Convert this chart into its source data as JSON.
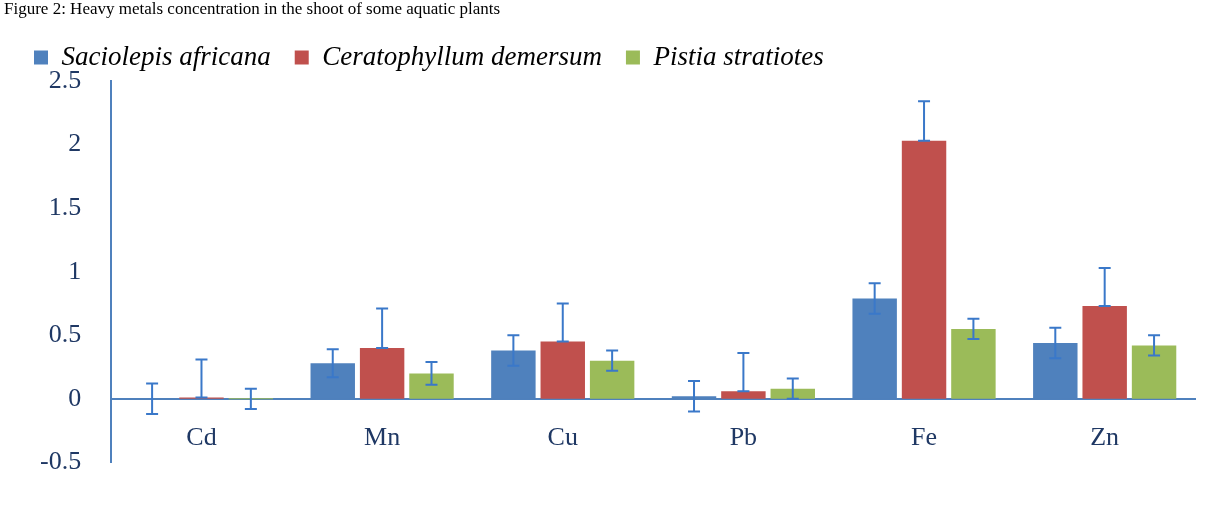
{
  "chart_data": {
    "type": "bar",
    "title": "Figure 2: Heavy metals concentration in the shoot of some aquatic plants",
    "categories": [
      "Cd",
      "Mn",
      "Cu",
      "Pb",
      "Fe",
      "Zn"
    ],
    "series": [
      {
        "name": "Saciolepis africana",
        "color": "#4f81bd",
        "values": [
          0,
          0.28,
          0.38,
          0.02,
          0.79,
          0.44
        ],
        "errors": [
          0.12,
          0.11,
          0.12,
          0.12,
          0.12,
          0.12
        ]
      },
      {
        "name": "Ceratophyllum demersum",
        "color": "#c0504d",
        "values": [
          0.01,
          0.4,
          0.45,
          0.06,
          2.03,
          0.73
        ],
        "errors": [
          [
            0.01,
            0.31
          ],
          [
            0.4,
            0.71
          ],
          [
            0.45,
            0.75
          ],
          [
            0.06,
            0.36
          ],
          [
            2.03,
            2.34
          ],
          [
            0.73,
            1.03
          ]
        ]
      },
      {
        "name": "Pistia stratiotes",
        "color": "#9bbb59",
        "values": [
          0,
          0.2,
          0.3,
          0.08,
          0.55,
          0.42
        ],
        "errors": [
          0.08,
          0.09,
          0.08,
          0.08,
          0.08,
          0.08
        ]
      }
    ],
    "ylim": [
      -0.5,
      2.5
    ],
    "yticks": [
      -0.5,
      0,
      0.5,
      1,
      1.5,
      2,
      2.5
    ],
    "grid": false,
    "legend": "top"
  }
}
